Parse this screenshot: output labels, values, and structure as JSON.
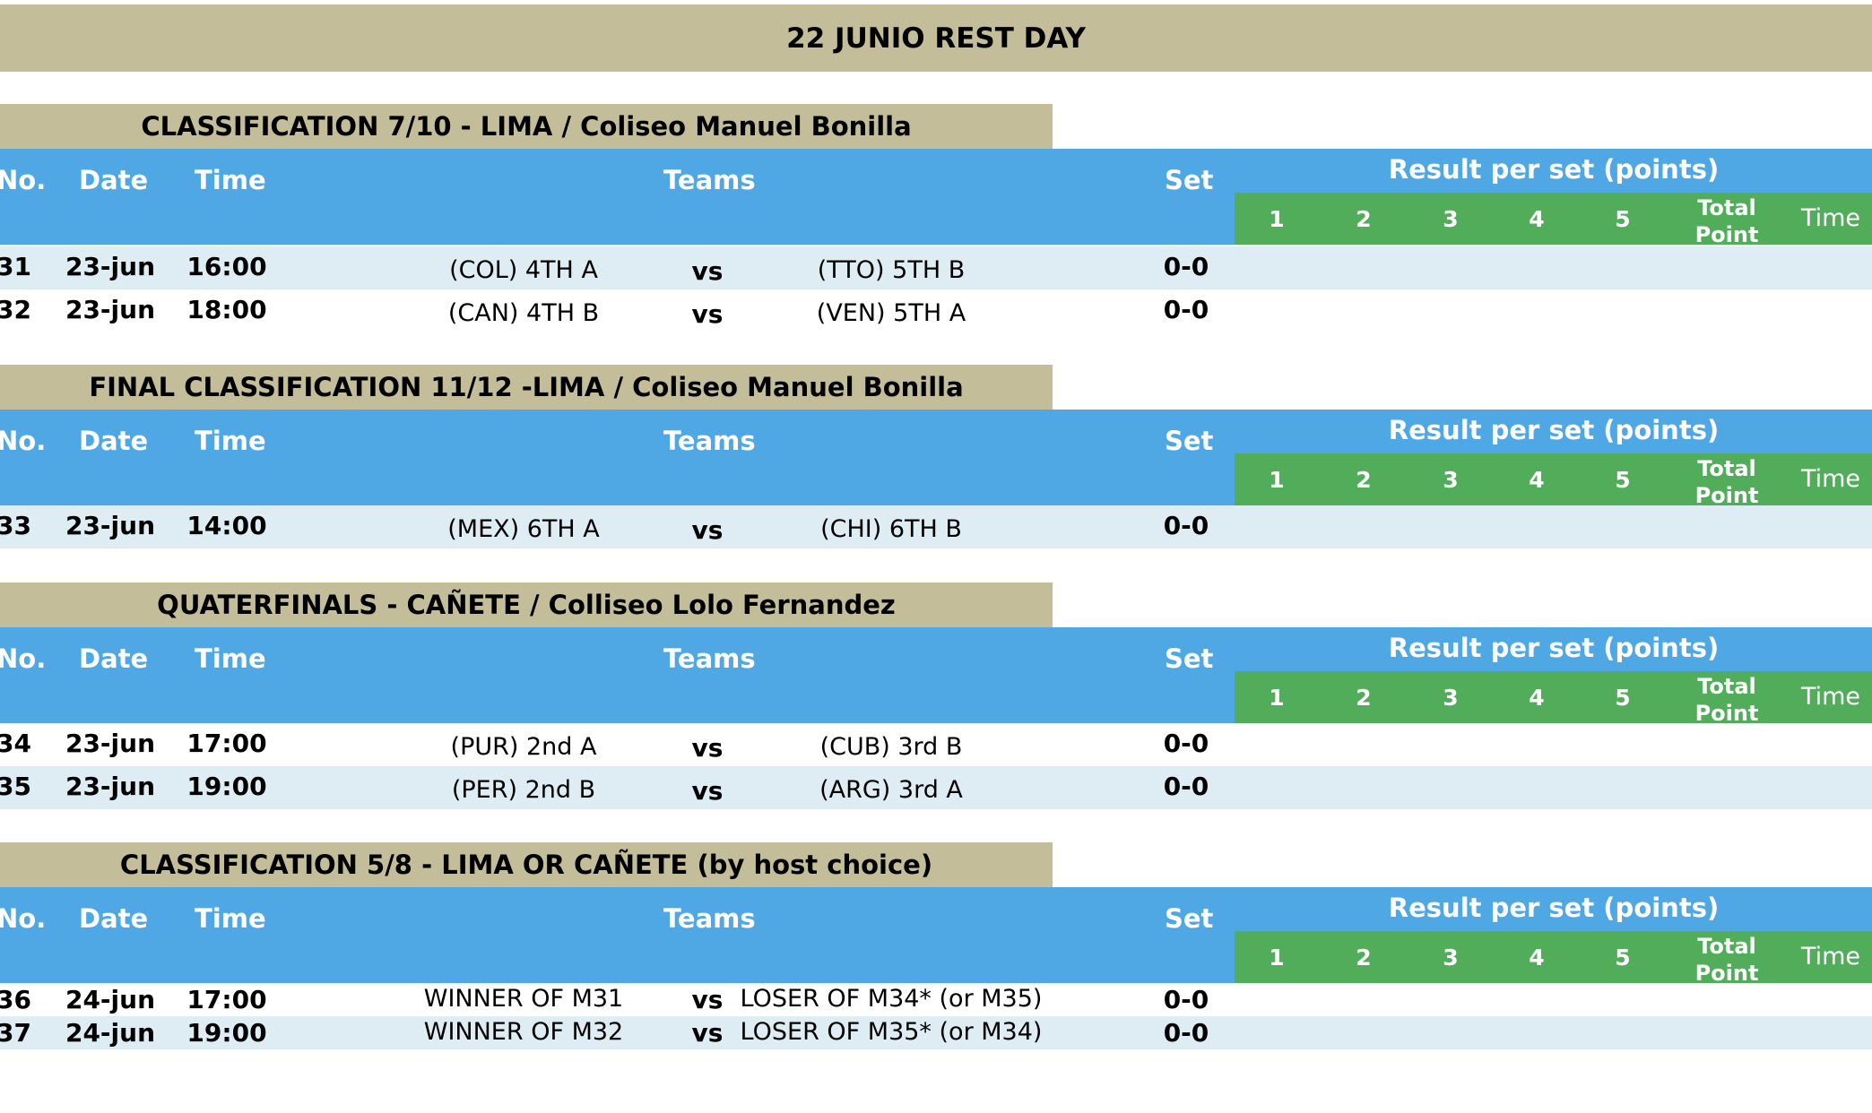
{
  "page_title": "22 JUNIO REST DAY",
  "header_labels": {
    "no": "No.",
    "date": "Date",
    "time": "Time",
    "teams": "Teams",
    "set": "Set",
    "result_per_set": "Result per set (points)",
    "set_1": "1",
    "set_2": "2",
    "set_3": "3",
    "set_4": "4",
    "set_5": "5",
    "total_line1": "Total",
    "total_line2": "Point",
    "result_time": "Time"
  },
  "sections": [
    {
      "title": "CLASSIFICATION 7/10 - LIMA / Coliseo Manuel Bonilla",
      "matches": [
        {
          "no": "31",
          "date": "23-jun",
          "time": "16:00",
          "team1": "(COL) 4TH A",
          "vs": "vs",
          "team2": "(TTO) 5TH B",
          "set": "0-0"
        },
        {
          "no": "32",
          "date": "23-jun",
          "time": "18:00",
          "team1": "(CAN) 4TH B",
          "vs": "vs",
          "team2": "(VEN) 5TH A",
          "set": "0-0"
        }
      ]
    },
    {
      "title": "FINAL CLASSIFICATION 11/12 -LIMA / Coliseo Manuel Bonilla",
      "matches": [
        {
          "no": "33",
          "date": "23-jun",
          "time": "14:00",
          "team1": "(MEX) 6TH A",
          "vs": "vs",
          "team2": "(CHI) 6TH B",
          "set": "0-0"
        }
      ]
    },
    {
      "title": "QUATERFINALS - CAÑETE / Colliseo Lolo Fernandez",
      "matches": [
        {
          "no": "34",
          "date": "23-jun",
          "time": "17:00",
          "team1": "(PUR) 2nd A",
          "vs": "vs",
          "team2": "(CUB) 3rd B",
          "set": "0-0"
        },
        {
          "no": "35",
          "date": "23-jun",
          "time": "19:00",
          "team1": "(PER) 2nd B",
          "vs": "vs",
          "team2": "(ARG) 3rd A",
          "set": "0-0"
        }
      ]
    },
    {
      "title": "CLASSIFICATION 5/8 - LIMA OR CAÑETE (by host choice)",
      "matches": [
        {
          "no": "36",
          "date": "24-jun",
          "time": "17:00",
          "team1": "WINNER OF M31",
          "vs": "vs",
          "team2": "LOSER OF M34* (or M35)",
          "set": "0-0"
        },
        {
          "no": "37",
          "date": "24-jun",
          "time": "19:00",
          "team1": "WINNER OF M32",
          "vs": "vs",
          "team2": "LOSER OF M35* (or M34)",
          "set": "0-0"
        }
      ]
    }
  ],
  "colors": {
    "title_banner": "#c4bd9a",
    "header_blue": "#4fa8e4",
    "header_green": "#52ad5b",
    "row_stripe": "#deedf3"
  }
}
